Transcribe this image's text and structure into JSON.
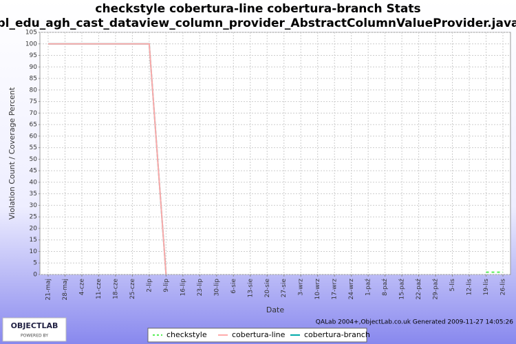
{
  "chart_data": {
    "type": "line",
    "title": "checkstyle cobertura-line cobertura-branch  Stats",
    "subtitle": "pl_edu_agh_cast_dataview_column_provider_AbstractColumnValueProvider.java",
    "x_label": "Date",
    "y_label": "Violation Count / Coverage Percent",
    "categories": [
      "21-maj",
      "28-maj",
      "4-cze",
      "11-cze",
      "18-cze",
      "25-cze",
      "2-lip",
      "9-lip",
      "16-lip",
      "23-lip",
      "30-lip",
      "6-sie",
      "13-sie",
      "20-sie",
      "27-sie",
      "3-wrz",
      "10-wrz",
      "17-wrz",
      "24-wrz",
      "1-paź",
      "8-paź",
      "15-paź",
      "22-paź",
      "29-paź",
      "5-lis",
      "12-lis",
      "19-lis",
      "26-lis"
    ],
    "series": [
      {
        "name": "checkstyle",
        "color": "#55ee55",
        "dashed": true,
        "values": [
          null,
          null,
          null,
          null,
          null,
          null,
          null,
          null,
          null,
          null,
          null,
          null,
          null,
          null,
          null,
          null,
          null,
          null,
          null,
          null,
          null,
          null,
          null,
          null,
          null,
          null,
          1,
          1
        ]
      },
      {
        "name": "cobertura-line",
        "color": "#ffaaaa",
        "dashed": false,
        "values": [
          100,
          100,
          100,
          100,
          100,
          100,
          100,
          0,
          null,
          null,
          null,
          null,
          null,
          null,
          null,
          null,
          null,
          null,
          null,
          null,
          null,
          null,
          null,
          null,
          null,
          null,
          null,
          null
        ]
      },
      {
        "name": "cobertura-branch",
        "color": "#00aaaa",
        "dashed": false,
        "values": [
          100,
          100,
          100,
          100,
          100,
          100,
          100,
          0,
          null,
          null,
          null,
          null,
          null,
          null,
          null,
          null,
          null,
          null,
          null,
          null,
          null,
          null,
          null,
          null,
          null,
          null,
          null,
          null
        ]
      }
    ],
    "ylim": [
      0,
      105
    ],
    "yticks": [
      0,
      5,
      10,
      15,
      20,
      25,
      30,
      35,
      40,
      45,
      50,
      55,
      60,
      65,
      70,
      75,
      80,
      85,
      90,
      95,
      100,
      105
    ],
    "grid": true
  },
  "footer": "QALab 2004+,ObjectLab.co.uk Generated 2009-11-27 14:05:26",
  "logo": {
    "name": "OBJECTLAB",
    "tagline": "POWERED BY"
  }
}
